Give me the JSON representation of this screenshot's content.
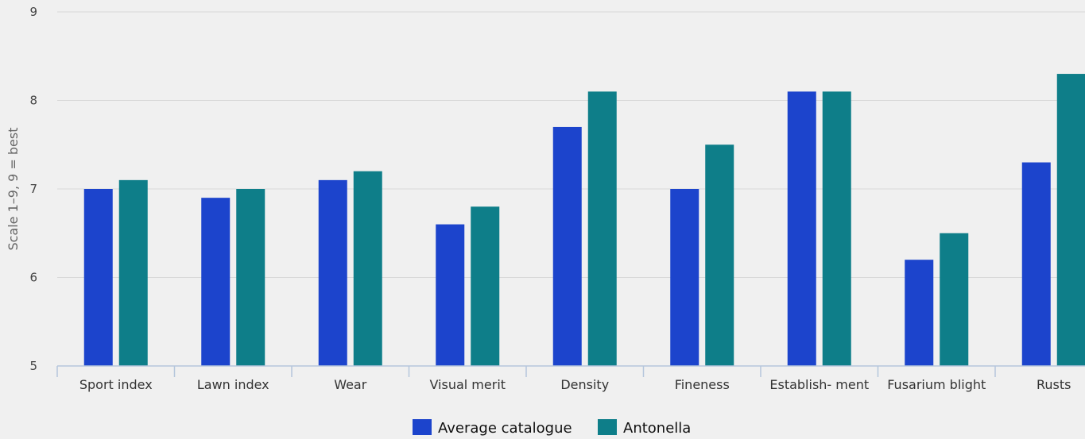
{
  "chart_data": {
    "type": "bar",
    "title": "",
    "xlabel": "",
    "ylabel": "Scale 1–9, 9 = best",
    "ylim": [
      5,
      9
    ],
    "yticks": [
      5,
      6,
      7,
      8,
      9
    ],
    "grid": true,
    "legend_position": "bottom-center",
    "categories": [
      "Sport index",
      "Lawn index",
      "Wear",
      "Visual merit",
      "Density",
      "Fineness",
      "Establish- ment",
      "Fusarium blight",
      "Rusts"
    ],
    "series": [
      {
        "name": "Average catalogue",
        "color": "#1c44cc",
        "values": [
          7.0,
          6.9,
          7.1,
          6.6,
          7.7,
          7.0,
          8.1,
          6.2,
          7.3
        ]
      },
      {
        "name": "Antonella",
        "color": "#0e7e89",
        "values": [
          7.1,
          7.0,
          7.2,
          6.8,
          8.1,
          7.5,
          8.1,
          6.5,
          8.3
        ]
      }
    ]
  }
}
